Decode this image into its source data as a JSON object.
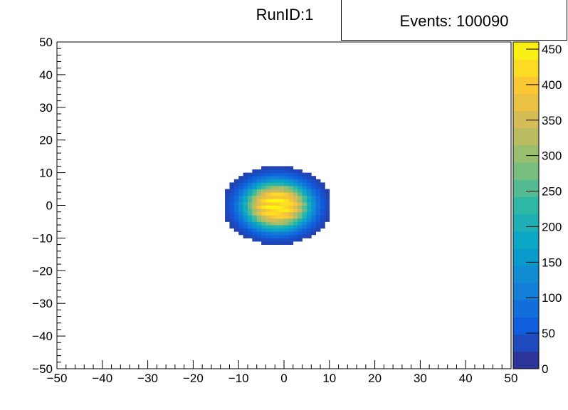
{
  "title": "RunID:1",
  "stats": {
    "events_label": "Events: 100090"
  },
  "chart_data": {
    "type": "heatmap",
    "title": "RunID:1",
    "xlabel": "",
    "ylabel": "",
    "xlim": [
      -50,
      50
    ],
    "ylim": [
      -50,
      50
    ],
    "x_ticks": [
      -50,
      -40,
      -30,
      -20,
      -10,
      0,
      10,
      20,
      30,
      40,
      50
    ],
    "y_ticks": [
      -50,
      -40,
      -30,
      -20,
      -10,
      0,
      10,
      20,
      30,
      40,
      50
    ],
    "x_tick_labels": [
      "−50",
      "−40",
      "−30",
      "−20",
      "−10",
      "0",
      "10",
      "20",
      "30",
      "40",
      "50"
    ],
    "y_tick_labels": [
      "−50",
      "−40",
      "−30",
      "−20",
      "−10",
      "0",
      "10",
      "20",
      "30",
      "40",
      "50"
    ],
    "bin_width": 1,
    "distribution": {
      "center_x": -1.5,
      "center_y": 0,
      "radius": 12,
      "peak": 450
    },
    "z_range": [
      0,
      460
    ],
    "colorbar_ticks": [
      0,
      50,
      100,
      150,
      200,
      250,
      300,
      350,
      400,
      450
    ],
    "colorbar_tick_labels": [
      "0",
      "50",
      "100",
      "150",
      "200",
      "250",
      "300",
      "350",
      "400",
      "450"
    ],
    "palette": [
      "#352a87",
      "#0f5cdd",
      "#1481d6",
      "#06a4ca",
      "#2eb7a4",
      "#87bf77",
      "#d1bb59",
      "#fec832",
      "#f9fb0e"
    ],
    "grid": false,
    "legend": "none"
  }
}
